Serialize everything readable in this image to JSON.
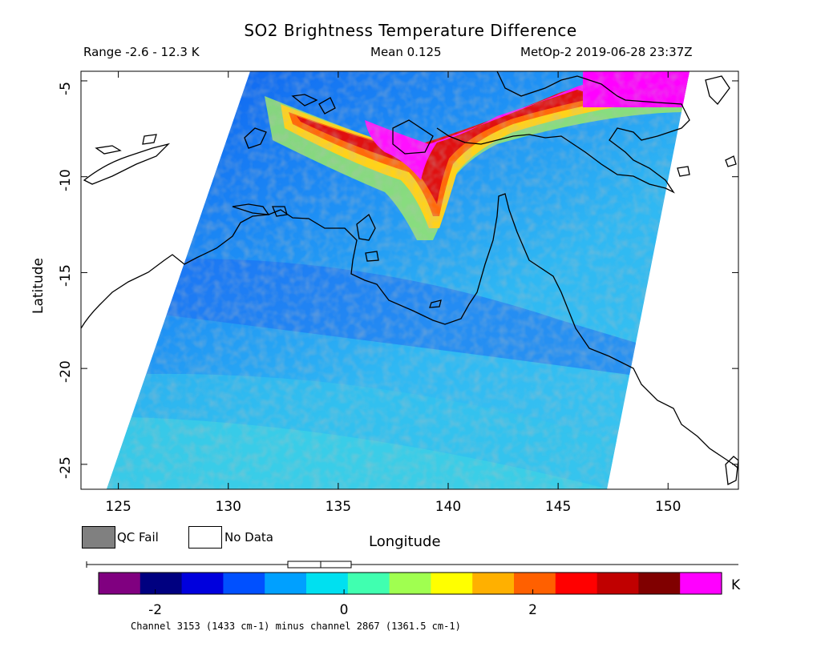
{
  "title": "SO2 Brightness Temperature Difference",
  "subtitle": {
    "range": "Range -2.6 - 12.3 K",
    "mean": "Mean 0.125",
    "satellite_time": "MetOp-2 2019-06-28 23:37Z"
  },
  "axes": {
    "x_label": "Longitude",
    "y_label": "Latitude",
    "x_ticks": [
      "125",
      "130",
      "135",
      "140",
      "145",
      "150"
    ],
    "y_ticks": [
      "-5",
      "-10",
      "-15",
      "-20",
      "-25"
    ],
    "x_tick_values": [
      125,
      130,
      135,
      140,
      145,
      150
    ],
    "y_tick_values": [
      -5,
      -10,
      -15,
      -20,
      -25
    ],
    "lon_range": [
      123.3,
      153.2
    ],
    "lat_range": [
      -26.3,
      -4.5
    ]
  },
  "legend": {
    "qc_fail": "QC Fail",
    "no_data": "No Data"
  },
  "colorbar": {
    "unit": "K",
    "ticks": [
      "-2",
      "0",
      "2"
    ],
    "tick_values": [
      -2,
      0,
      2
    ],
    "range": [
      -2.6,
      4.0
    ],
    "colors": [
      "#800080",
      "#000080",
      "#0000dd",
      "#0050ff",
      "#00a0ff",
      "#00e0f0",
      "#40ffb0",
      "#a0ff50",
      "#ffff00",
      "#ffb000",
      "#ff6000",
      "#ff0000",
      "#c00000",
      "#800000",
      "#ff00ff"
    ]
  },
  "footer": "Channel 3153 (1433 cm-1) minus channel 2867 (1361.5 cm-1)"
}
